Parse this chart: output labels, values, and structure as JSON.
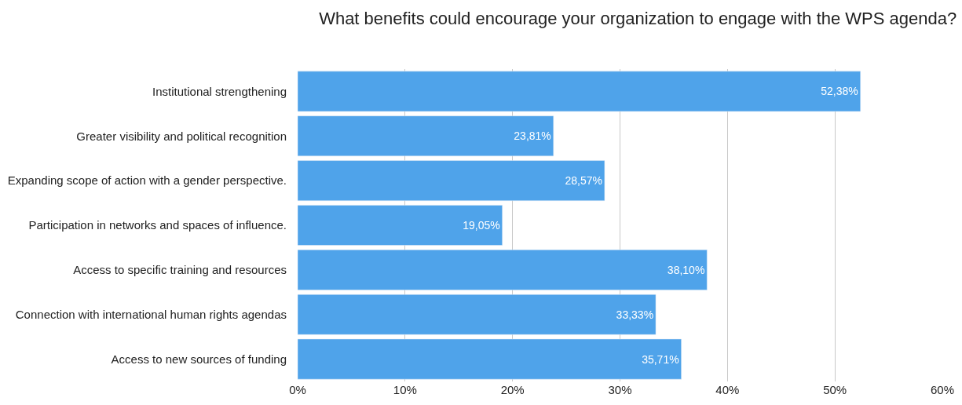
{
  "chart_data": {
    "type": "bar",
    "orientation": "horizontal",
    "title": "What benefits could encourage your organization to engage with the WPS agenda?",
    "categories": [
      "Institutional strengthening",
      "Greater visibility and political recognition",
      "Expanding scope of action with a gender perspective.",
      "Participation in networks and spaces of influence.",
      "Access to specific training and resources",
      "Connection with international human rights agendas",
      "Access to new sources of funding"
    ],
    "values": [
      52.38,
      23.81,
      28.57,
      19.05,
      38.1,
      33.33,
      35.71
    ],
    "value_labels": [
      "52,38%",
      "23,81%",
      "28,57%",
      "19,05%",
      "38,10%",
      "33,33%",
      "35,71%"
    ],
    "color": "#4fa3ea",
    "xlim": [
      0,
      60
    ],
    "xticks": [
      {
        "value": 0,
        "label": "0%"
      },
      {
        "value": 10,
        "label": "10%"
      },
      {
        "value": 20,
        "label": "20%"
      },
      {
        "value": 30,
        "label": "30%"
      },
      {
        "value": 40,
        "label": "40%"
      },
      {
        "value": 50,
        "label": "50%"
      },
      {
        "value": 60,
        "label": "60%"
      }
    ],
    "grid": "x",
    "legend": false
  }
}
